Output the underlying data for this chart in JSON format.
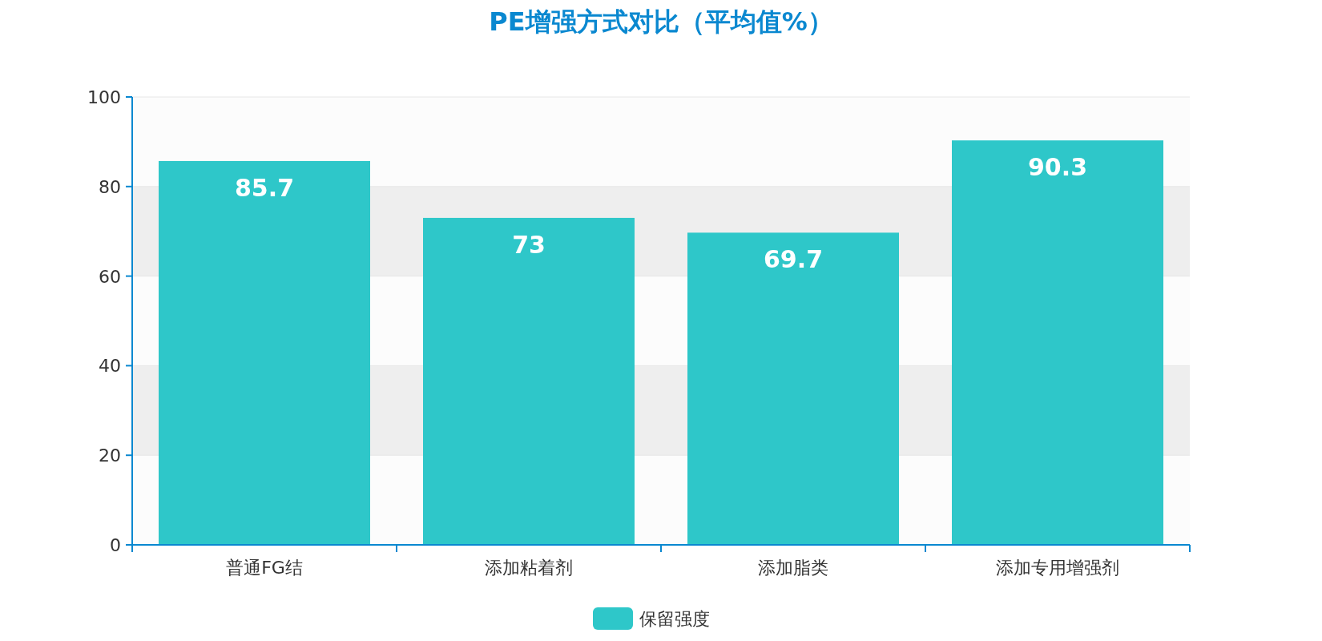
{
  "chart_data": {
    "type": "bar",
    "title": "PE增强方式对比（平均值%）",
    "categories": [
      "普通FG结",
      "添加粘着剂",
      "添加脂类",
      "添加专用增强剂"
    ],
    "series": [
      {
        "name": "保留强度",
        "color": "#2ec7c9",
        "values": [
          85.7,
          73,
          69.7,
          90.3
        ]
      }
    ],
    "ylim": [
      0,
      100
    ],
    "yticks": [
      0,
      20,
      40,
      60,
      80,
      100
    ],
    "grid": "y",
    "legend": "bottom",
    "data_labels": true
  }
}
